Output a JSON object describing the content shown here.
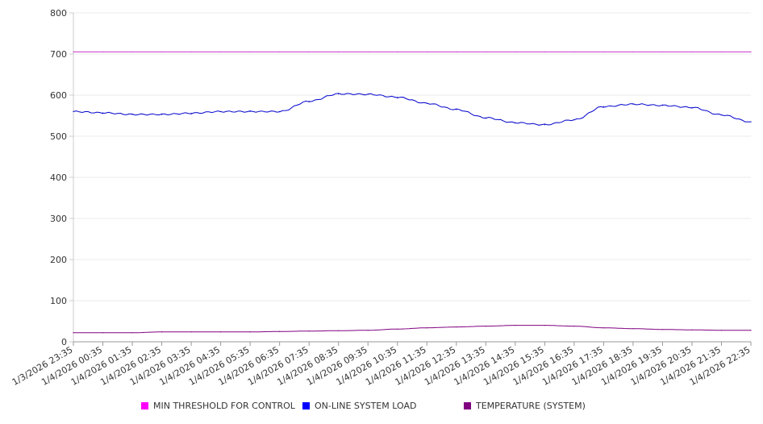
{
  "chart_data": {
    "type": "line",
    "title": "",
    "xlabel": "",
    "ylabel": "",
    "ylim": [
      0,
      800
    ],
    "y_ticks": [
      0,
      100,
      200,
      300,
      400,
      500,
      600,
      700,
      800
    ],
    "grid": true,
    "legend_position": "bottom",
    "x": [
      "1/3/2026 23:35",
      "1/4/2026 00:35",
      "1/4/2026 01:35",
      "1/4/2026 02:35",
      "1/4/2026 03:35",
      "1/4/2026 04:35",
      "1/4/2026 05:35",
      "1/4/2026 06:35",
      "1/4/2026 07:35",
      "1/4/2026 08:35",
      "1/4/2026 09:35",
      "1/4/2026 10:35",
      "1/4/2026 11:35",
      "1/4/2026 12:35",
      "1/4/2026 13:35",
      "1/4/2026 14:35",
      "1/4/2026 15:35",
      "1/4/2026 16:35",
      "1/4/2026 17:35",
      "1/4/2026 18:35",
      "1/4/2026 19:35",
      "1/4/2026 20:35",
      "1/4/2026 21:35",
      "1/4/2026 22:35"
    ],
    "series": [
      {
        "name": "MIN THRESHOLD FOR CONTROL",
        "color": "#cc33cc",
        "legend_color": "#ff00ff",
        "values": [
          705,
          705,
          705,
          705,
          705,
          705,
          705,
          705,
          705,
          705,
          705,
          705,
          705,
          705,
          705,
          705,
          705,
          705,
          705,
          705,
          705,
          705,
          705,
          705
        ]
      },
      {
        "name": "ON-LINE SYSTEM LOAD",
        "color": "#0000cc",
        "legend_color": "#0000ff",
        "values": [
          560,
          557,
          553,
          553,
          556,
          560,
          560,
          560,
          585,
          603,
          602,
          595,
          580,
          565,
          545,
          533,
          528,
          540,
          572,
          578,
          575,
          570,
          552,
          535
        ]
      },
      {
        "name": "TEMPERATURE (SYSTEM)",
        "color": "#800080",
        "legend_color": "#800080",
        "values": [
          22,
          22,
          22,
          24,
          24,
          24,
          24,
          25,
          26,
          27,
          28,
          31,
          34,
          36,
          38,
          40,
          40,
          38,
          34,
          32,
          30,
          29,
          28,
          28
        ]
      }
    ]
  }
}
